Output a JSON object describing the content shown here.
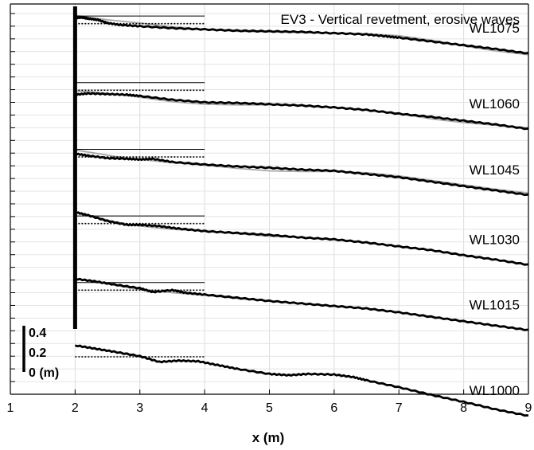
{
  "chart_data": {
    "type": "line",
    "title": "EV3 - Vertical revetment, erosive waves",
    "xlabel": "x (m)",
    "ylabel": "",
    "xlim": [
      1,
      9
    ],
    "x_ticks": [
      "1",
      "2",
      "3",
      "4",
      "5",
      "6",
      "7",
      "8",
      "9"
    ],
    "ylim": [
      0,
      6.15
    ],
    "grid": true,
    "wall_x": 2,
    "scale_bar": {
      "labels": [
        "0.4",
        "0.2",
        "0 (m)"
      ],
      "length_m": 0.4
    },
    "series": [
      {
        "name": "WL1075",
        "offset": 5.25,
        "level_solid": 0.71,
        "level_dotted": 0.59,
        "profile": [
          [
            2.0,
            0.68
          ],
          [
            2.1,
            0.69
          ],
          [
            2.2,
            0.67
          ],
          [
            2.35,
            0.65
          ],
          [
            2.5,
            0.6
          ],
          [
            2.7,
            0.57
          ],
          [
            3.0,
            0.55
          ],
          [
            3.5,
            0.52
          ],
          [
            4.0,
            0.5
          ],
          [
            4.5,
            0.48
          ],
          [
            5.0,
            0.47
          ],
          [
            5.5,
            0.46
          ],
          [
            6.0,
            0.44
          ],
          [
            6.5,
            0.42
          ],
          [
            6.8,
            0.39
          ],
          [
            7.0,
            0.37
          ],
          [
            7.5,
            0.31
          ],
          [
            8.0,
            0.25
          ],
          [
            8.5,
            0.19
          ],
          [
            9.0,
            0.12
          ]
        ],
        "initial_profile": [
          [
            2.0,
            0.72
          ],
          [
            2.2,
            0.69
          ],
          [
            2.5,
            0.65
          ],
          [
            3.0,
            0.6
          ],
          [
            3.5,
            0.54
          ],
          [
            4.0,
            0.5
          ],
          [
            4.5,
            0.47
          ],
          [
            5.0,
            0.46
          ],
          [
            5.5,
            0.45
          ],
          [
            6.0,
            0.44
          ],
          [
            6.5,
            0.43
          ],
          [
            7.0,
            0.4
          ],
          [
            7.5,
            0.33
          ],
          [
            8.0,
            0.24
          ],
          [
            8.5,
            0.16
          ],
          [
            9.0,
            0.1
          ]
        ]
      },
      {
        "name": "WL1060",
        "offset": 4.2,
        "level_solid": 0.71,
        "level_dotted": 0.59,
        "profile": [
          [
            2.0,
            0.52
          ],
          [
            2.2,
            0.54
          ],
          [
            2.5,
            0.53
          ],
          [
            2.8,
            0.52
          ],
          [
            3.0,
            0.5
          ],
          [
            3.5,
            0.44
          ],
          [
            4.0,
            0.4
          ],
          [
            4.5,
            0.39
          ],
          [
            5.0,
            0.37
          ],
          [
            5.5,
            0.35
          ],
          [
            6.0,
            0.32
          ],
          [
            6.5,
            0.28
          ],
          [
            7.0,
            0.22
          ],
          [
            7.5,
            0.17
          ],
          [
            8.0,
            0.11
          ],
          [
            8.5,
            0.05
          ],
          [
            9.0,
            -0.02
          ]
        ],
        "initial_profile": [
          [
            2.0,
            0.58
          ],
          [
            2.3,
            0.56
          ],
          [
            2.6,
            0.53
          ],
          [
            3.0,
            0.48
          ],
          [
            3.5,
            0.41
          ],
          [
            4.0,
            0.37
          ],
          [
            4.5,
            0.36
          ],
          [
            5.0,
            0.36
          ],
          [
            5.5,
            0.35
          ],
          [
            6.0,
            0.32
          ],
          [
            6.5,
            0.28
          ],
          [
            7.0,
            0.22
          ],
          [
            7.5,
            0.14
          ],
          [
            8.0,
            0.08
          ],
          [
            8.5,
            0.04
          ],
          [
            9.0,
            0.0
          ]
        ]
      },
      {
        "name": "WL1045",
        "offset": 3.15,
        "level_solid": 0.71,
        "level_dotted": 0.59,
        "profile": [
          [
            2.0,
            0.64
          ],
          [
            2.2,
            0.61
          ],
          [
            2.5,
            0.57
          ],
          [
            2.8,
            0.56
          ],
          [
            3.0,
            0.55
          ],
          [
            3.2,
            0.56
          ],
          [
            3.5,
            0.51
          ],
          [
            4.0,
            0.47
          ],
          [
            4.5,
            0.44
          ],
          [
            5.0,
            0.42
          ],
          [
            5.5,
            0.39
          ],
          [
            6.0,
            0.37
          ],
          [
            6.5,
            0.32
          ],
          [
            7.0,
            0.27
          ],
          [
            7.5,
            0.2
          ],
          [
            8.0,
            0.13
          ],
          [
            8.5,
            0.06
          ],
          [
            9.0,
            -0.01
          ]
        ],
        "initial_profile": [
          [
            2.0,
            0.7
          ],
          [
            2.3,
            0.65
          ],
          [
            2.6,
            0.6
          ],
          [
            3.0,
            0.55
          ],
          [
            3.5,
            0.5
          ],
          [
            4.0,
            0.46
          ],
          [
            4.5,
            0.41
          ],
          [
            5.0,
            0.37
          ],
          [
            5.5,
            0.36
          ],
          [
            6.0,
            0.36
          ],
          [
            6.5,
            0.34
          ],
          [
            7.0,
            0.29
          ],
          [
            7.5,
            0.22
          ],
          [
            8.0,
            0.15
          ],
          [
            8.5,
            0.08
          ],
          [
            9.0,
            0.02
          ]
        ]
      },
      {
        "name": "WL1030",
        "offset": 2.1,
        "level_solid": 0.71,
        "level_dotted": 0.59,
        "profile": [
          [
            2.0,
            0.77
          ],
          [
            2.2,
            0.72
          ],
          [
            2.5,
            0.63
          ],
          [
            2.8,
            0.57
          ],
          [
            3.0,
            0.57
          ],
          [
            3.3,
            0.55
          ],
          [
            3.6,
            0.51
          ],
          [
            4.0,
            0.47
          ],
          [
            4.5,
            0.44
          ],
          [
            5.0,
            0.41
          ],
          [
            5.5,
            0.37
          ],
          [
            6.0,
            0.34
          ],
          [
            6.5,
            0.29
          ],
          [
            7.0,
            0.23
          ],
          [
            7.5,
            0.17
          ],
          [
            8.0,
            0.09
          ],
          [
            8.5,
            0.02
          ],
          [
            9.0,
            -0.06
          ]
        ],
        "initial_profile": [
          [
            2.0,
            0.77
          ],
          [
            2.3,
            0.7
          ],
          [
            2.6,
            0.62
          ],
          [
            3.0,
            0.55
          ],
          [
            3.5,
            0.5
          ],
          [
            4.0,
            0.47
          ],
          [
            4.5,
            0.43
          ],
          [
            5.0,
            0.39
          ],
          [
            5.5,
            0.37
          ],
          [
            6.0,
            0.34
          ],
          [
            6.5,
            0.29
          ],
          [
            7.0,
            0.23
          ],
          [
            7.5,
            0.17
          ],
          [
            8.0,
            0.09
          ],
          [
            8.5,
            0.02
          ],
          [
            9.0,
            -0.06
          ]
        ]
      },
      {
        "name": "WL1015",
        "offset": 1.05,
        "level_solid": 0.71,
        "level_dotted": 0.59,
        "profile": [
          [
            2.0,
            0.77
          ],
          [
            2.3,
            0.73
          ],
          [
            2.6,
            0.68
          ],
          [
            3.0,
            0.62
          ],
          [
            3.2,
            0.56
          ],
          [
            3.5,
            0.59
          ],
          [
            3.7,
            0.55
          ],
          [
            4.0,
            0.52
          ],
          [
            4.5,
            0.47
          ],
          [
            5.0,
            0.42
          ],
          [
            5.5,
            0.38
          ],
          [
            6.0,
            0.34
          ],
          [
            6.5,
            0.3
          ],
          [
            7.0,
            0.24
          ],
          [
            7.5,
            0.17
          ],
          [
            8.0,
            0.1
          ],
          [
            8.5,
            0.03
          ],
          [
            9.0,
            -0.04
          ]
        ],
        "initial_profile": [
          [
            2.0,
            0.77
          ],
          [
            2.3,
            0.72
          ],
          [
            2.6,
            0.67
          ],
          [
            3.0,
            0.6
          ],
          [
            3.5,
            0.55
          ],
          [
            4.0,
            0.51
          ],
          [
            4.5,
            0.46
          ],
          [
            5.0,
            0.42
          ],
          [
            5.5,
            0.38
          ],
          [
            6.0,
            0.34
          ],
          [
            6.5,
            0.3
          ],
          [
            7.0,
            0.24
          ],
          [
            7.5,
            0.17
          ],
          [
            8.0,
            0.1
          ],
          [
            8.5,
            0.03
          ],
          [
            9.0,
            -0.04
          ]
        ]
      },
      {
        "name": "WL1000",
        "offset": 0.0,
        "level_solid": null,
        "level_dotted": 0.59,
        "profile": [
          [
            2.0,
            0.77
          ],
          [
            2.3,
            0.72
          ],
          [
            2.6,
            0.67
          ],
          [
            3.0,
            0.6
          ],
          [
            3.3,
            0.51
          ],
          [
            3.6,
            0.53
          ],
          [
            3.9,
            0.52
          ],
          [
            4.2,
            0.46
          ],
          [
            4.5,
            0.4
          ],
          [
            5.0,
            0.32
          ],
          [
            5.3,
            0.3
          ],
          [
            5.6,
            0.32
          ],
          [
            6.0,
            0.31
          ],
          [
            6.3,
            0.27
          ],
          [
            6.5,
            0.22
          ],
          [
            7.0,
            0.11
          ],
          [
            7.5,
            -0.01
          ],
          [
            8.0,
            -0.12
          ],
          [
            8.5,
            -0.24
          ],
          [
            9.0,
            -0.34
          ]
        ],
        "initial_profile": []
      }
    ]
  }
}
